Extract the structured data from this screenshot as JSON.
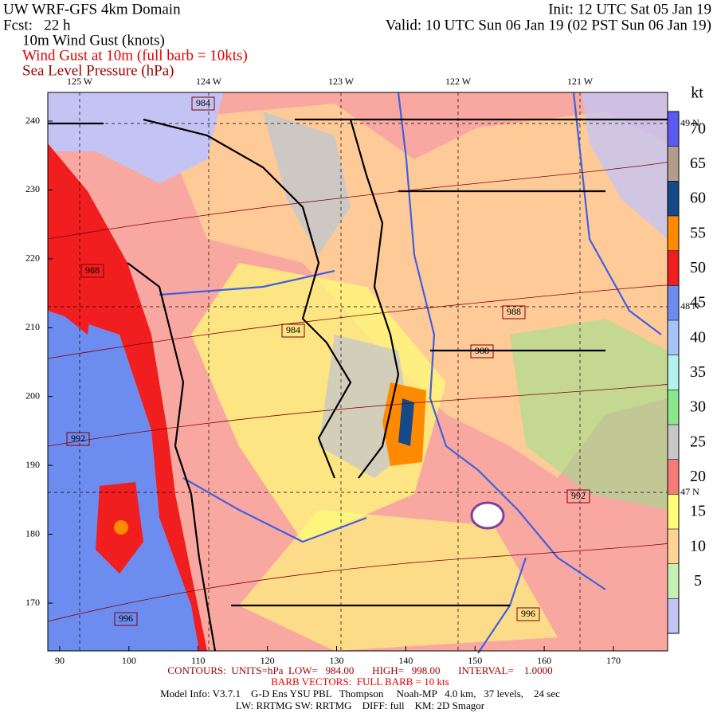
{
  "header": {
    "title": "UW WRF-GFS 4km Domain",
    "forecast": "Fcst:   22 h",
    "init": "Init: 12 UTC Sat 05 Jan 19",
    "valid": "Valid: 10 UTC Sun 06 Jan 19 (02 PST Sun 06 Jan 19)",
    "fields": [
      {
        "text": "10m Wind Gust (knots)",
        "color": "#000000"
      },
      {
        "text": "Wind Gust at 10m (full barb = 10kts)",
        "color": "#e00000"
      },
      {
        "text": "Sea Level Pressure (hPa)",
        "color": "#a00000"
      }
    ]
  },
  "map": {
    "top_labels": [
      "125 W",
      "124 W",
      "123 W",
      "122 W",
      "121 W"
    ],
    "left_ticks": [
      240,
      230,
      220,
      210,
      200,
      190,
      180,
      170
    ],
    "bottom_ticks": [
      90,
      100,
      110,
      120,
      130,
      140,
      150,
      160,
      170
    ],
    "right_labels": [
      "49 N",
      "48 N",
      "47 N"
    ],
    "contour_labels": [
      984,
      988,
      984,
      988,
      988,
      992,
      992,
      996,
      996
    ]
  },
  "colorbar": {
    "unit": "kt",
    "levels": [
      70,
      65,
      60,
      55,
      50,
      45,
      40,
      35,
      30,
      25,
      20,
      15,
      10,
      5
    ],
    "colors": [
      "#5a5af0",
      "#b49c8c",
      "#154a88",
      "#ff8a00",
      "#f01e1e",
      "#6c8cf0",
      "#a6c4fa",
      "#b4f0ec",
      "#8ce68c",
      "#c8c8c8",
      "#f87a7a",
      "#ffff78",
      "#ffd296",
      "#c4f2b4",
      "#c4c4f4"
    ]
  },
  "footer": {
    "contours": "CONTOURS:  UNITS=hPa  LOW=   984.00       HIGH=   998.00       INTERVAL=    1.0000",
    "barbs": "BARB VECTORS:  FULL BARB = 10 kts",
    "model_info": "Model Info: V3.7.1    G-D Ens YSU PBL   Thompson     Noah-MP   4.0 km,   37 levels,    24 sec",
    "physics": "LW: RRTMG SW: RRTMG    DIFF: full    KM: 2D Smagor"
  }
}
